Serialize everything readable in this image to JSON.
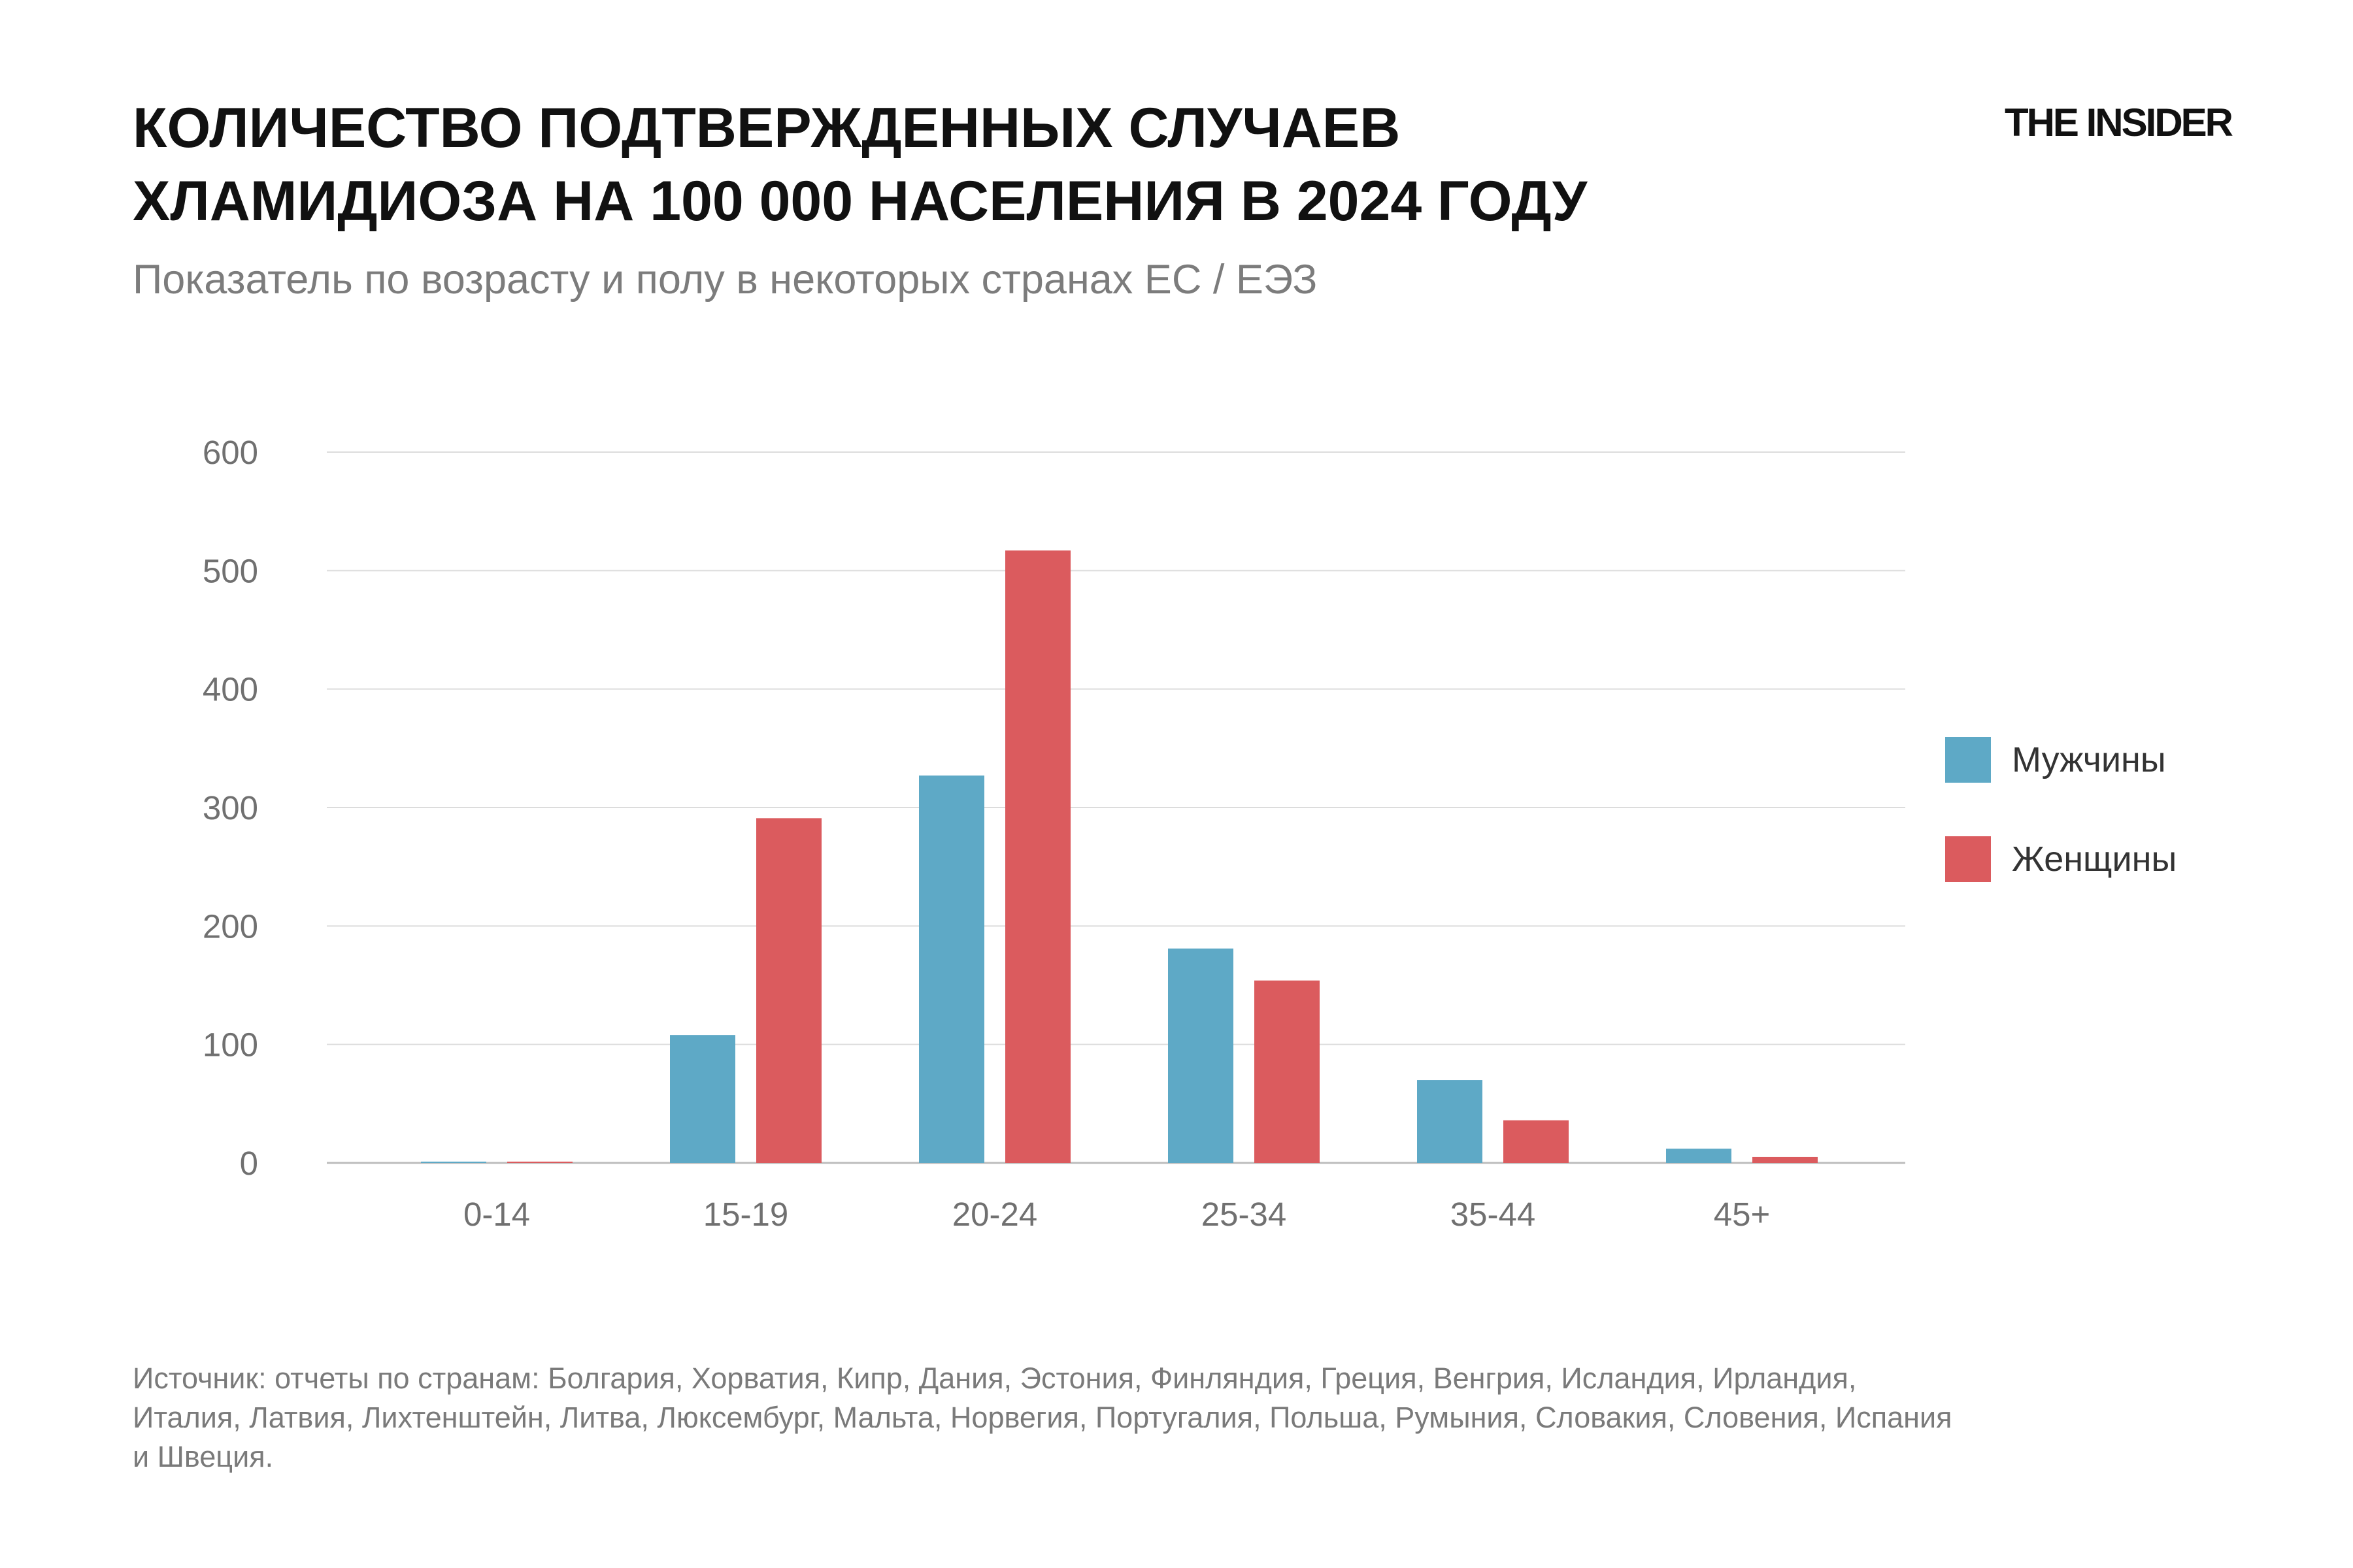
{
  "header": {
    "title_line1": "КОЛИЧЕСТВО ПОДТВЕРЖДЕННЫХ СЛУЧАЕВ",
    "title_line2": "ХЛАМИДИОЗА НА 100 000 НАСЕЛЕНИЯ В 2024 ГОДУ",
    "subtitle": "Показатель по возрасту и полу в некоторых странах ЕС / ЕЭЗ",
    "logo": "THE INSIDER"
  },
  "chart_data": {
    "type": "bar",
    "categories": [
      "0-14",
      "15-19",
      "20-24",
      "25-34",
      "35-44",
      "45+"
    ],
    "series": [
      {
        "name": "Мужчины",
        "color": "#5ea9c6",
        "values": [
          0.2,
          108,
          327,
          181,
          70,
          12
        ]
      },
      {
        "name": "Женщины",
        "color": "#db5b5e",
        "values": [
          1,
          291,
          517,
          154,
          36,
          5
        ]
      }
    ],
    "yticks": [
      "0",
      "100",
      "200",
      "300",
      "400",
      "500",
      "600"
    ],
    "ylim": [
      0,
      600
    ],
    "grid": true,
    "legend_position": "right"
  },
  "footer": {
    "source_line1": "Источник: отчеты по странам: Болгария, Хорватия, Кипр, Дания, Эстония, Финляндия, Греция, Венгрия, Исландия, Ирландия,",
    "source_line2": "Италия, Латвия, Лихтенштейн, Литва, Люксембург, Мальта, Норвегия, Португалия, Польша, Румыния, Словакия, Словения, Испания",
    "source_line3": "и Швеция."
  }
}
